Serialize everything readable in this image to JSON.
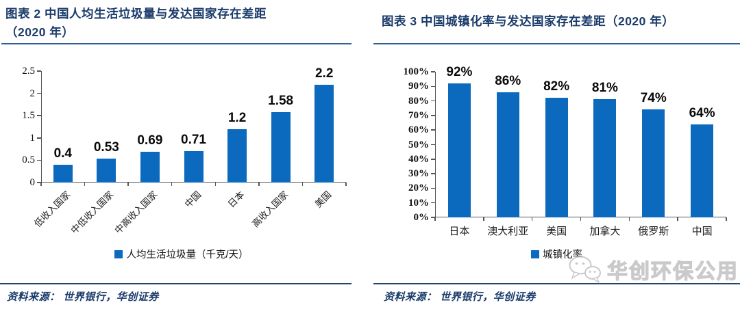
{
  "colors": {
    "bar": "#0B69BE",
    "title_navy": "#1B3B6B",
    "rule_top": "#2E6095",
    "rule_bottom": "#1F4570",
    "axis": "#555555",
    "watermark_gray": "#c9c9c9"
  },
  "figures": [
    {
      "title_line1": "图表 2  中国人均生活垃圾量与发达国家存在差距",
      "title_line2": "（2020 年）",
      "source_label": "资料来源：",
      "source_text": "世界银行，华创证券"
    },
    {
      "title_line1": "图表 3  中国城镇化率与发达国家存在差距（2020 年）",
      "source_label": "资料来源：",
      "source_text": "世界银行，华创证券"
    }
  ],
  "watermark": {
    "text": "华创环保公用",
    "icon": "wechat-icon"
  },
  "chart_data": [
    {
      "type": "bar",
      "title": "图表 2 中国人均生活垃圾量与发达国家存在差距（2020 年）",
      "categories": [
        "低收入国家",
        "中低收入国家",
        "中高收入国家",
        "中国",
        "日本",
        "高收入国家",
        "美国"
      ],
      "values": [
        0.4,
        0.53,
        0.69,
        0.71,
        1.2,
        1.58,
        2.2
      ],
      "value_labels": [
        "0.4",
        "0.53",
        "0.69",
        "0.71",
        "1.2",
        "1.58",
        "2.2"
      ],
      "legend": [
        "人均生活垃圾量（千克/天）"
      ],
      "xlabel": "",
      "ylabel": "",
      "ylim": [
        0,
        2.5
      ],
      "yticks": [
        0,
        0.5,
        1,
        1.5,
        2,
        2.5
      ],
      "ytick_labels": [
        "0",
        "0.5",
        "1",
        "1.5",
        "2",
        "2.5"
      ],
      "x_label_rotation": -45,
      "grid": false,
      "legend_position": "bottom",
      "bar_color": "#0B69BE"
    },
    {
      "type": "bar",
      "title": "图表 3 中国城镇化率与发达国家存在差距（2020 年）",
      "categories": [
        "日本",
        "澳大利亚",
        "美国",
        "加拿大",
        "俄罗斯",
        "中国"
      ],
      "values": [
        92,
        86,
        82,
        81,
        74,
        64
      ],
      "value_labels": [
        "92%",
        "86%",
        "82%",
        "81%",
        "74%",
        "64%"
      ],
      "legend": [
        "城镇化率"
      ],
      "xlabel": "",
      "ylabel": "",
      "ylim": [
        0,
        100
      ],
      "yticks": [
        0,
        10,
        20,
        30,
        40,
        50,
        60,
        70,
        80,
        90,
        100
      ],
      "ytick_labels": [
        "0%",
        "10%",
        "20%",
        "30%",
        "40%",
        "50%",
        "60%",
        "70%",
        "80%",
        "90%",
        "100%"
      ],
      "x_label_rotation": 0,
      "grid": false,
      "legend_position": "bottom",
      "bar_color": "#0B69BE"
    }
  ]
}
